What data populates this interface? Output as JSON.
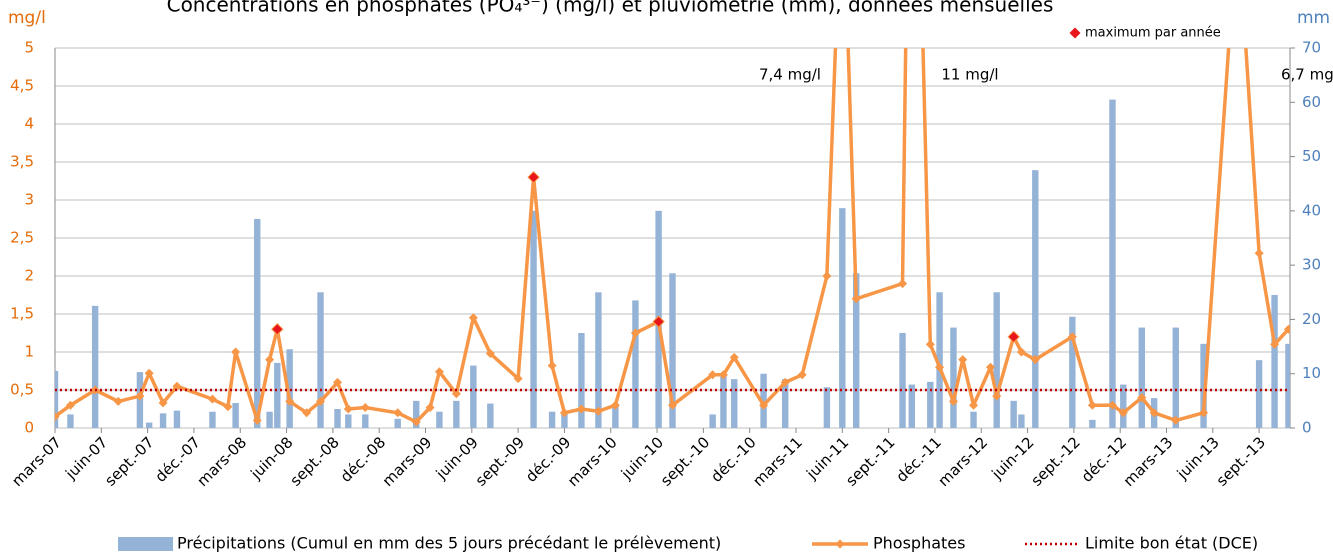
{
  "chart_data": {
    "type": "combo",
    "title": "Concentrations en phosphates (PO₄³⁻) (mg/l) et pluviométrie (mm), données mensuelles",
    "y_label": "mg/l",
    "y2_label": "mm",
    "xlim": [
      0,
      80
    ],
    "xticks": [
      {
        "value": 0,
        "label": "mars-07"
      },
      {
        "value": 3,
        "label": "juin-07"
      },
      {
        "value": 6,
        "label": "sept.-07"
      },
      {
        "value": 9,
        "label": "déc.-07"
      },
      {
        "value": 12,
        "label": "mars-08"
      },
      {
        "value": 15,
        "label": "juin-08"
      },
      {
        "value": 18,
        "label": "sept.-08"
      },
      {
        "value": 21,
        "label": "déc.-08"
      },
      {
        "value": 24,
        "label": "mars-09"
      },
      {
        "value": 27,
        "label": "juin-09"
      },
      {
        "value": 30,
        "label": "sept.-09"
      },
      {
        "value": 33,
        "label": "déc.-09"
      },
      {
        "value": 36,
        "label": "mars-10"
      },
      {
        "value": 39,
        "label": "juin-10"
      },
      {
        "value": 42,
        "label": "sept.-10"
      },
      {
        "value": 45,
        "label": "déc.-10"
      },
      {
        "value": 48,
        "label": "mars-11"
      },
      {
        "value": 51,
        "label": "juin-11"
      },
      {
        "value": 54,
        "label": "sept.-11"
      },
      {
        "value": 57,
        "label": "déc.-11"
      },
      {
        "value": 60,
        "label": "mars-12"
      },
      {
        "value": 63,
        "label": "juin-12"
      },
      {
        "value": 66,
        "label": "sept.-12"
      },
      {
        "value": 69,
        "label": "déc.-12"
      },
      {
        "value": 72,
        "label": "mars-13"
      },
      {
        "value": 75,
        "label": "juin-13"
      },
      {
        "value": 78,
        "label": "sept.-13"
      }
    ],
    "ylim": [
      0,
      5
    ],
    "yticks": [
      0,
      {
        "value": 0.5,
        "label": "0,5"
      },
      1,
      {
        "value": 1.5,
        "label": "1,5"
      },
      2,
      {
        "value": 2.5,
        "label": "2,5"
      },
      3,
      {
        "value": 3.5,
        "label": "3,5"
      },
      4,
      {
        "value": 4.5,
        "label": "4,5"
      },
      5
    ],
    "y2lim": [
      0,
      70
    ],
    "y2ticks": [
      0,
      10,
      20,
      30,
      40,
      50,
      60,
      70
    ],
    "grid": true,
    "series": [
      {
        "name": "Précipitations (Cumul en mm des 5 jours précédant le prélèvement)",
        "type": "bar",
        "axis": "y2",
        "color": "#95b3d7",
        "x": [
          0,
          1.0,
          2.6,
          5.5,
          6.1,
          7.0,
          7.9,
          10.2,
          11.7,
          13.1,
          13.9,
          14.4,
          15.2,
          17.2,
          18.3,
          19.0,
          20.1,
          22.2,
          23.4,
          24.9,
          26.0,
          27.1,
          28.2,
          31.0,
          32.2,
          33.0,
          34.1,
          35.2,
          36.3,
          37.6,
          39.1,
          40.0,
          42.6,
          43.3,
          44.0,
          45.9,
          47.3,
          50.0,
          51.0,
          51.9,
          54.9,
          55.5,
          56.7,
          57.3,
          58.2,
          59.5,
          61.0,
          62.1,
          62.6,
          63.5,
          65.9,
          67.2,
          68.5,
          69.2,
          70.4,
          71.2,
          72.6,
          74.4,
          78.0,
          79.0,
          79.9
        ],
        "values": [
          10.5,
          2.5,
          22.5,
          10.3,
          1,
          2.7,
          3.2,
          3,
          4.6,
          38.5,
          3,
          12,
          14.5,
          25,
          3.5,
          2.5,
          2.5,
          1.7,
          5,
          3,
          5,
          11.5,
          4.5,
          40,
          3,
          3,
          17.5,
          25,
          4,
          23.5,
          40,
          28.5,
          2.5,
          10,
          9,
          10,
          9,
          7.5,
          40.5,
          28.5,
          17.5,
          8,
          8.5,
          25,
          18.5,
          3,
          25,
          5,
          2.5,
          47.5,
          20.5,
          1.5,
          60.5,
          8,
          18.5,
          5.5,
          18.5,
          15.5,
          12.5,
          24.5,
          15.5
        ]
      },
      {
        "name": "Phosphates",
        "type": "line",
        "color": "#f79646",
        "x": [
          0,
          1.0,
          2.6,
          4.1,
          5.5,
          6.1,
          7.0,
          7.9,
          10.2,
          11.2,
          11.7,
          13.1,
          13.9,
          14.4,
          15.2,
          16.3,
          17.2,
          18.3,
          19.0,
          20.1,
          22.2,
          23.4,
          24.3,
          24.9,
          26.0,
          27.1,
          28.2,
          30.0,
          31.0,
          32.2,
          33.0,
          34.1,
          35.2,
          36.3,
          37.6,
          39.1,
          40.0,
          42.6,
          43.3,
          44.0,
          45.9,
          47.3,
          48.4,
          50.0,
          51.0,
          51.9,
          54.9,
          55.5,
          56.7,
          57.3,
          58.2,
          58.8,
          59.5,
          60.6,
          61.0,
          62.1,
          62.6,
          63.5,
          65.9,
          67.2,
          68.5,
          69.2,
          70.4,
          71.2,
          72.6,
          74.4,
          76.6,
          78.0,
          79.0,
          79.9
        ],
        "values": [
          0.15,
          0.3,
          0.5,
          0.35,
          0.42,
          0.72,
          0.33,
          0.55,
          0.38,
          0.28,
          1.0,
          0.1,
          0.9,
          1.3,
          0.35,
          0.2,
          0.35,
          0.6,
          0.25,
          0.27,
          0.2,
          0.08,
          0.27,
          0.74,
          0.45,
          1.45,
          0.98,
          0.65,
          3.3,
          0.82,
          0.2,
          0.25,
          0.22,
          0.3,
          1.25,
          1.4,
          0.3,
          0.7,
          0.7,
          0.93,
          0.3,
          0.6,
          0.7,
          2.0,
          7.4,
          1.7,
          1.9,
          11,
          1.1,
          0.8,
          0.35,
          0.9,
          0.3,
          0.8,
          0.42,
          1.2,
          1.0,
          0.9,
          1.2,
          0.3,
          0.3,
          0.2,
          0.4,
          0.2,
          0.1,
          0.2,
          6.7,
          2.3,
          1.1,
          1.3
        ]
      },
      {
        "name": "Limite bon état (DCE)",
        "type": "hline",
        "color": "#c00000",
        "values": [
          0.5
        ]
      },
      {
        "name": "maximum par année",
        "type": "marker",
        "color": "#e8161a",
        "x": [
          14.4,
          31.0,
          39.1,
          62.1
        ],
        "values": [
          1.3,
          3.3,
          1.4,
          1.2
        ]
      }
    ],
    "annotations": [
      "7,4 mg/l",
      "11 mg/l",
      "6,7 mg/l"
    ]
  }
}
